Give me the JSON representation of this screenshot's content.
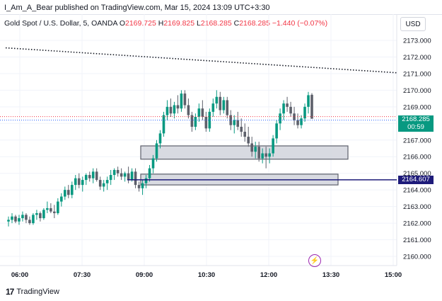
{
  "header": {
    "text": "I_Am_A_Bear published on TradingView.com, Mar 15, 2024 13:09 UTC+3:30"
  },
  "legend": {
    "symbol": "Gold Spot / U.S. Dollar, 5, OANDA",
    "o_label": "O",
    "o_value": "2169.725",
    "h_label": "H",
    "h_value": "2169.825",
    "l_label": "L",
    "l_value": "2168.285",
    "c_label": "C",
    "c_value": "2168.285",
    "change": "−1.440 (−0.07%)"
  },
  "currency_button": "USD",
  "price_tags": {
    "current_price": "2168.285",
    "countdown": "00:59",
    "line_price": "2164.607"
  },
  "footer": {
    "brand": "TradingView",
    "logo": "17"
  },
  "icons": {
    "lightning": "lightning-icon"
  },
  "colors": {
    "up": "#089981",
    "down": "#5d606b",
    "box_border": "#5d606b",
    "box_fill": "#d1d4dc",
    "line": "#1e1b7a",
    "trend": "#131722"
  },
  "chart_data": {
    "type": "candlestick",
    "symbol": "Gold Spot / U.S. Dollar",
    "interval": "5",
    "y_ticks": [
      "2173.000",
      "2172.000",
      "2171.000",
      "2170.000",
      "2169.000",
      "2168.000",
      "2167.000",
      "2166.000",
      "2165.000",
      "2164.000",
      "2163.000",
      "2162.000",
      "2161.000",
      "2160.000"
    ],
    "x_ticks": [
      "06:00",
      "07:30",
      "09:00",
      "10:30",
      "12:00",
      "13:30",
      "15:00"
    ],
    "ylim": [
      2159.6,
      2173.6
    ],
    "zones": [
      {
        "name": "upper-zone",
        "price_low": 2165.85,
        "price_high": 2166.65,
        "time_start": "09:00",
        "time_end": "13:30"
      },
      {
        "name": "lower-zone",
        "price_low": 2164.3,
        "price_high": 2164.95,
        "time_start": "09:00",
        "time_end": "13:30"
      }
    ],
    "horizontal_line": 2164.607,
    "trendline": {
      "start": [
        "05:30",
        2172.55
      ],
      "end": [
        "15:00",
        2171.05
      ]
    },
    "candles": [
      [
        2162.1,
        2162.4,
        2161.8,
        2162.2
      ],
      [
        2162.2,
        2162.6,
        2162.0,
        2162.4
      ],
      [
        2162.4,
        2162.5,
        2162.0,
        2162.1
      ],
      [
        2162.1,
        2162.5,
        2161.9,
        2162.3
      ],
      [
        2162.3,
        2162.7,
        2162.1,
        2162.5
      ],
      [
        2162.5,
        2162.6,
        2162.0,
        2162.2
      ],
      [
        2162.2,
        2162.4,
        2161.9,
        2162.0
      ],
      [
        2162.0,
        2162.6,
        2161.9,
        2162.5
      ],
      [
        2162.5,
        2162.8,
        2162.2,
        2162.6
      ],
      [
        2162.6,
        2162.7,
        2162.1,
        2162.3
      ],
      [
        2162.3,
        2162.9,
        2162.2,
        2162.8
      ],
      [
        2162.8,
        2163.3,
        2162.6,
        2162.9
      ],
      [
        2162.9,
        2163.2,
        2162.6,
        2162.7
      ],
      [
        2162.7,
        2163.1,
        2162.3,
        2162.6
      ],
      [
        2162.6,
        2163.5,
        2162.5,
        2163.3
      ],
      [
        2163.3,
        2163.8,
        2163.0,
        2163.6
      ],
      [
        2163.6,
        2164.2,
        2163.4,
        2164.0
      ],
      [
        2164.0,
        2164.3,
        2163.5,
        2163.7
      ],
      [
        2163.7,
        2164.5,
        2163.5,
        2164.3
      ],
      [
        2164.3,
        2164.9,
        2164.0,
        2164.7
      ],
      [
        2164.7,
        2165.0,
        2164.1,
        2164.3
      ],
      [
        2164.3,
        2164.8,
        2163.9,
        2164.6
      ],
      [
        2164.6,
        2165.0,
        2164.3,
        2164.9
      ],
      [
        2164.9,
        2165.1,
        2164.5,
        2164.7
      ],
      [
        2164.7,
        2165.3,
        2164.4,
        2165.1
      ],
      [
        2165.1,
        2165.3,
        2164.5,
        2164.6
      ],
      [
        2164.6,
        2164.8,
        2164.0,
        2164.2
      ],
      [
        2164.2,
        2164.6,
        2163.9,
        2164.4
      ],
      [
        2164.4,
        2164.8,
        2164.0,
        2164.6
      ],
      [
        2164.6,
        2165.2,
        2164.3,
        2164.9
      ],
      [
        2164.9,
        2165.3,
        2164.6,
        2165.2
      ],
      [
        2165.2,
        2165.4,
        2164.8,
        2165.0
      ],
      [
        2165.0,
        2165.3,
        2164.6,
        2164.8
      ],
      [
        2164.8,
        2165.1,
        2164.5,
        2165.0
      ],
      [
        2165.0,
        2165.4,
        2164.4,
        2164.6
      ],
      [
        2164.6,
        2165.3,
        2164.5,
        2165.1
      ],
      [
        2165.1,
        2165.3,
        2164.1,
        2164.3
      ],
      [
        2164.3,
        2164.5,
        2163.9,
        2164.1
      ],
      [
        2164.1,
        2164.6,
        2163.7,
        2164.4
      ],
      [
        2164.4,
        2164.9,
        2164.1,
        2164.7
      ],
      [
        2164.7,
        2165.5,
        2164.5,
        2165.3
      ],
      [
        2165.3,
        2166.1,
        2165.0,
        2165.9
      ],
      [
        2165.9,
        2167.0,
        2165.7,
        2166.8
      ],
      [
        2166.8,
        2167.6,
        2166.5,
        2167.4
      ],
      [
        2167.4,
        2168.7,
        2167.2,
        2168.5
      ],
      [
        2168.5,
        2169.4,
        2168.2,
        2169.0
      ],
      [
        2169.0,
        2169.5,
        2168.4,
        2168.6
      ],
      [
        2168.6,
        2169.3,
        2168.3,
        2169.1
      ],
      [
        2169.1,
        2169.7,
        2168.6,
        2168.9
      ],
      [
        2168.9,
        2170.0,
        2168.7,
        2169.8
      ],
      [
        2169.8,
        2170.0,
        2168.9,
        2169.1
      ],
      [
        2169.1,
        2169.5,
        2168.3,
        2168.5
      ],
      [
        2168.5,
        2168.7,
        2167.5,
        2167.8
      ],
      [
        2167.8,
        2168.6,
        2167.6,
        2168.4
      ],
      [
        2168.4,
        2169.2,
        2168.1,
        2168.9
      ],
      [
        2168.9,
        2169.4,
        2168.2,
        2168.4
      ],
      [
        2168.4,
        2168.7,
        2167.5,
        2167.7
      ],
      [
        2167.7,
        2168.9,
        2167.5,
        2168.7
      ],
      [
        2168.7,
        2169.5,
        2168.4,
        2169.2
      ],
      [
        2169.2,
        2170.0,
        2168.9,
        2169.6
      ],
      [
        2169.6,
        2169.9,
        2168.5,
        2168.8
      ],
      [
        2168.8,
        2169.6,
        2168.6,
        2169.4
      ],
      [
        2169.4,
        2169.6,
        2168.3,
        2168.5
      ],
      [
        2168.5,
        2168.8,
        2167.6,
        2167.9
      ],
      [
        2167.9,
        2168.5,
        2167.4,
        2168.2
      ],
      [
        2168.2,
        2168.7,
        2167.6,
        2167.8
      ],
      [
        2167.8,
        2168.3,
        2167.2,
        2167.5
      ],
      [
        2167.5,
        2168.0,
        2166.9,
        2167.2
      ],
      [
        2167.2,
        2167.8,
        2166.6,
        2166.8
      ],
      [
        2166.8,
        2167.2,
        2166.0,
        2166.3
      ],
      [
        2166.3,
        2166.9,
        2165.9,
        2166.6
      ],
      [
        2166.6,
        2166.9,
        2165.7,
        2165.9
      ],
      [
        2165.9,
        2166.5,
        2165.6,
        2166.2
      ],
      [
        2166.2,
        2166.6,
        2165.3,
        2166.0
      ],
      [
        2166.0,
        2166.5,
        2165.6,
        2166.2
      ],
      [
        2166.2,
        2167.3,
        2166.0,
        2167.1
      ],
      [
        2167.1,
        2168.2,
        2166.8,
        2168.0
      ],
      [
        2168.0,
        2168.9,
        2167.6,
        2168.6
      ],
      [
        2168.6,
        2169.4,
        2168.2,
        2169.2
      ],
      [
        2169.2,
        2169.6,
        2168.7,
        2169.0
      ],
      [
        2169.0,
        2169.3,
        2168.4,
        2168.6
      ],
      [
        2168.6,
        2169.0,
        2167.9,
        2168.2
      ],
      [
        2168.2,
        2168.6,
        2167.7,
        2167.9
      ],
      [
        2167.9,
        2168.5,
        2167.7,
        2168.3
      ],
      [
        2168.3,
        2169.2,
        2168.1,
        2169.0
      ],
      [
        2169.0,
        2169.9,
        2168.6,
        2169.7
      ],
      [
        2169.725,
        2169.825,
        2168.285,
        2168.285
      ]
    ]
  }
}
